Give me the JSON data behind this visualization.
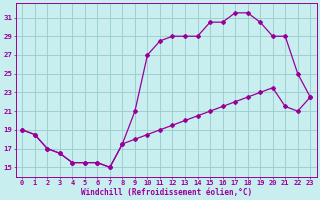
{
  "xlabel": "Windchill (Refroidissement éolien,°C)",
  "bg_color": "#c8eef0",
  "line_color": "#990099",
  "grid_color": "#99cccc",
  "xlim": [
    -0.5,
    23.5
  ],
  "ylim": [
    14.0,
    32.5
  ],
  "yticks": [
    15,
    17,
    19,
    21,
    23,
    25,
    27,
    29,
    31
  ],
  "xticks": [
    0,
    1,
    2,
    3,
    4,
    5,
    6,
    7,
    8,
    9,
    10,
    11,
    12,
    13,
    14,
    15,
    16,
    17,
    18,
    19,
    20,
    21,
    22,
    23
  ],
  "line1_x": [
    0,
    1,
    2,
    3,
    4,
    5,
    6,
    7,
    8,
    9,
    10,
    11,
    12,
    13,
    14,
    15,
    16,
    17,
    18,
    19,
    20,
    21,
    22,
    23
  ],
  "line1_y": [
    19.0,
    18.5,
    17.0,
    16.5,
    15.5,
    15.5,
    15.5,
    15.0,
    17.5,
    21.0,
    27.0,
    28.5,
    29.0,
    29.0,
    29.0,
    30.5,
    30.5,
    31.5,
    31.5,
    30.5,
    29.0,
    29.0,
    25.0,
    22.5
  ],
  "line2_x": [
    0,
    1,
    2,
    3,
    4,
    5,
    6,
    7,
    8,
    9,
    10,
    11,
    12,
    13,
    14,
    15,
    16,
    17,
    18,
    19,
    20,
    21,
    22,
    23
  ],
  "line2_y": [
    19.0,
    18.5,
    17.0,
    16.5,
    15.5,
    15.5,
    15.5,
    15.0,
    17.5,
    18.0,
    18.5,
    19.0,
    19.5,
    20.0,
    20.5,
    21.0,
    21.5,
    22.0,
    22.5,
    23.0,
    23.5,
    21.5,
    21.0,
    22.5
  ],
  "marker": "D",
  "markersize": 2.0,
  "linewidth": 0.9,
  "tick_fontsize": 5.0,
  "xlabel_fontsize": 5.5
}
